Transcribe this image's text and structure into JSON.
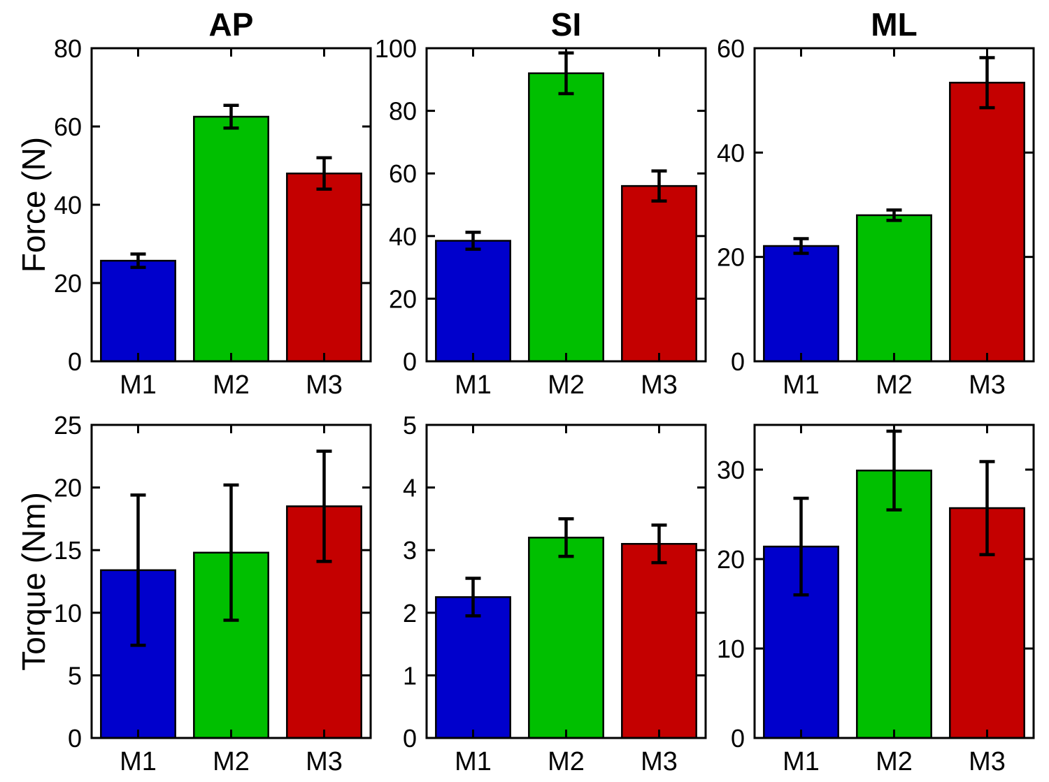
{
  "figure": {
    "background": "#ffffff",
    "row_labels": [
      "Force (N)",
      "Torque (Nm)"
    ],
    "col_titles": [
      "AP",
      "SI",
      "ML"
    ]
  },
  "colors": {
    "axis": "#000000",
    "error_bar": "#000000",
    "bars": [
      "#0000CC",
      "#00BF00",
      "#C40000"
    ]
  },
  "chart_data": [
    {
      "id": "force-ap",
      "type": "bar",
      "title": "AP",
      "xlabel": "",
      "ylabel": "Force (N)",
      "categories": [
        "M1",
        "M2",
        "M3"
      ],
      "values": [
        25.7,
        62.5,
        48.0
      ],
      "errors": [
        1.7,
        2.9,
        4.0
      ],
      "ylim": [
        0,
        80
      ],
      "yticks": [
        0,
        20,
        40,
        60,
        80
      ],
      "grid": false,
      "legend": "none"
    },
    {
      "id": "force-si",
      "type": "bar",
      "title": "SI",
      "xlabel": "",
      "ylabel": "",
      "categories": [
        "M1",
        "M2",
        "M3"
      ],
      "values": [
        38.5,
        92.0,
        56.0
      ],
      "errors": [
        2.7,
        6.5,
        4.8
      ],
      "ylim": [
        0,
        100
      ],
      "yticks": [
        0,
        20,
        40,
        60,
        80,
        100
      ],
      "grid": false,
      "legend": "none"
    },
    {
      "id": "force-ml",
      "type": "bar",
      "title": "ML",
      "xlabel": "",
      "ylabel": "",
      "categories": [
        "M1",
        "M2",
        "M3"
      ],
      "values": [
        22.1,
        28.0,
        53.4
      ],
      "errors": [
        1.4,
        1.0,
        4.8
      ],
      "ylim": [
        0,
        60
      ],
      "yticks": [
        0,
        20,
        40,
        60
      ],
      "grid": false,
      "legend": "none"
    },
    {
      "id": "torque-ap",
      "type": "bar",
      "title": "",
      "xlabel": "",
      "ylabel": "Torque (Nm)",
      "categories": [
        "M1",
        "M2",
        "M3"
      ],
      "values": [
        13.4,
        14.8,
        18.5
      ],
      "errors": [
        6.0,
        5.4,
        4.4
      ],
      "ylim": [
        0,
        25
      ],
      "yticks": [
        0,
        5,
        10,
        15,
        20,
        25
      ],
      "grid": false,
      "legend": "none"
    },
    {
      "id": "torque-si",
      "type": "bar",
      "title": "",
      "xlabel": "",
      "ylabel": "",
      "categories": [
        "M1",
        "M2",
        "M3"
      ],
      "values": [
        2.25,
        3.2,
        3.1
      ],
      "errors": [
        0.3,
        0.3,
        0.3
      ],
      "ylim": [
        0,
        5
      ],
      "yticks": [
        0,
        1,
        2,
        3,
        4,
        5
      ],
      "grid": false,
      "legend": "none"
    },
    {
      "id": "torque-ml",
      "type": "bar",
      "title": "",
      "xlabel": "",
      "ylabel": "",
      "categories": [
        "M1",
        "M2",
        "M3"
      ],
      "values": [
        21.4,
        29.9,
        25.7
      ],
      "errors": [
        5.4,
        4.4,
        5.2
      ],
      "ylim": [
        0,
        35
      ],
      "yticks": [
        0,
        10,
        20,
        30
      ],
      "grid": false,
      "legend": "none"
    }
  ]
}
